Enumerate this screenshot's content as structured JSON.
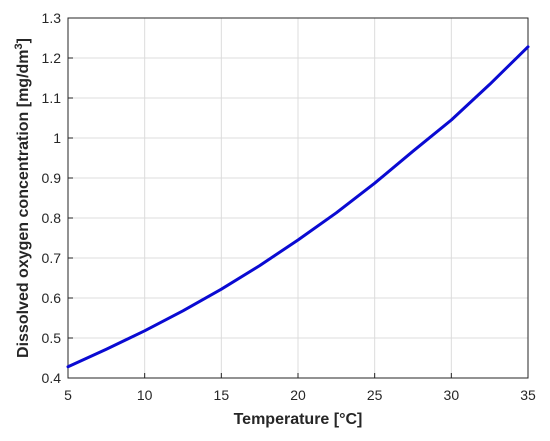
{
  "chart_data": {
    "type": "line",
    "xlabel": "Temperature [°C]",
    "ylabel": "Dissolved oxygen concentration [mg/dm",
    "ylabel_superscript": "3",
    "ylabel_suffix": "]",
    "xlim": [
      5,
      35
    ],
    "ylim": [
      0.4,
      1.3
    ],
    "xticks": [
      "5",
      "10",
      "15",
      "20",
      "25",
      "30",
      "35"
    ],
    "yticks": [
      "0.4",
      "0.5",
      "0.6",
      "0.7",
      "0.8",
      "0.9",
      "1",
      "1.1",
      "1.2",
      "1.3"
    ],
    "grid": true,
    "line_color": "#0a0ad2",
    "series": [
      {
        "x": [
          5,
          7.5,
          10,
          12.5,
          15,
          17.5,
          20,
          22.5,
          25,
          27.5,
          30,
          32.5,
          35
        ],
        "y": [
          0.428,
          0.472,
          0.518,
          0.568,
          0.622,
          0.681,
          0.745,
          0.813,
          0.887,
          0.967,
          1.045,
          1.134,
          1.228
        ]
      }
    ]
  }
}
